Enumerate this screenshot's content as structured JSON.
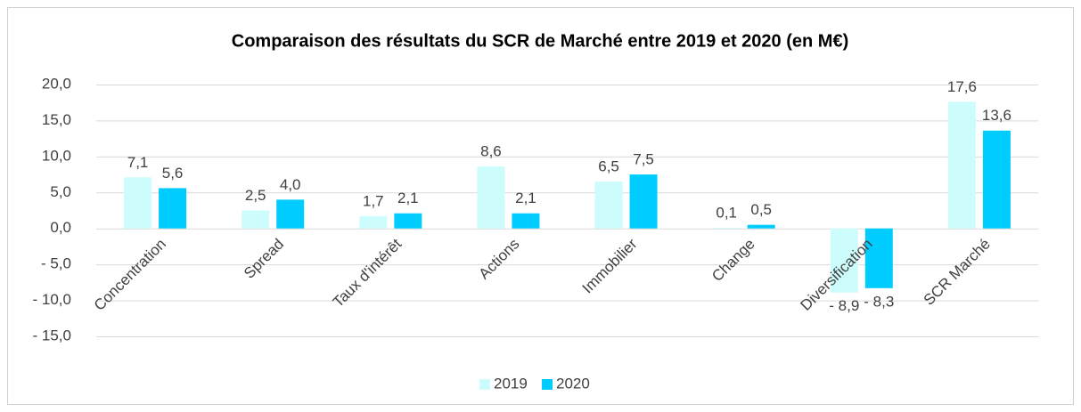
{
  "chart_data": {
    "type": "bar",
    "title": "Comparaison des résultats du SCR de Marché entre 2019 et 2020 (en M€)",
    "categories": [
      "Concentration",
      "Spread",
      "Taux d'intérêt",
      "Actions",
      "Immobilier",
      "Change",
      "Diversification",
      "SCR Marché"
    ],
    "series": [
      {
        "name": "2019",
        "color": "#ccfcfc",
        "values": [
          7.1,
          2.5,
          1.7,
          8.6,
          6.5,
          0.1,
          -8.9,
          17.6
        ],
        "value_labels": [
          "7,1",
          "2,5",
          "1,7",
          "8,6",
          "6,5",
          "0,1",
          "- 8,9",
          "17,6"
        ]
      },
      {
        "name": "2020",
        "color": "#00ccff",
        "values": [
          5.6,
          4.0,
          2.1,
          2.1,
          7.5,
          0.5,
          -8.3,
          13.6
        ],
        "value_labels": [
          "5,6",
          "4,0",
          "2,1",
          "2,1",
          "7,5",
          "0,5",
          "- 8,3",
          "13,6"
        ]
      }
    ],
    "ylim": [
      -15,
      20
    ],
    "yticks": [
      {
        "value": -15,
        "label": "- 15,0"
      },
      {
        "value": -10,
        "label": "- 10,0"
      },
      {
        "value": -5,
        "label": "- 5,0"
      },
      {
        "value": 0,
        "label": "0,0"
      },
      {
        "value": 5,
        "label": "5,0"
      },
      {
        "value": 10,
        "label": "10,0"
      },
      {
        "value": 15,
        "label": "15,0"
      },
      {
        "value": 20,
        "label": "20,0"
      }
    ],
    "grid": true,
    "legend": "bottom"
  }
}
